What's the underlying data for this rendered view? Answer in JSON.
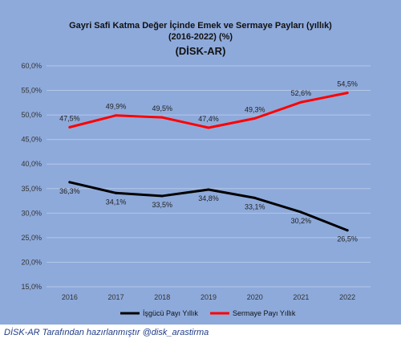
{
  "chart_data": {
    "type": "line",
    "title_line1": "Gayri Safi Katma Değer İçinde Emek ve Sermaye Payları (yıllık)",
    "title_line2": "(2016-2022) (%)",
    "title_line3": "(DİSK-AR)",
    "categories": [
      "2016",
      "2017",
      "2018",
      "2019",
      "2020",
      "2021",
      "2022"
    ],
    "ylim": [
      15,
      60
    ],
    "yticks": [
      15,
      20,
      25,
      30,
      35,
      40,
      45,
      50,
      55,
      60
    ],
    "ytick_labels": [
      "15,0%",
      "20,0%",
      "25,0%",
      "30,0%",
      "35,0%",
      "40,0%",
      "45,0%",
      "50,0%",
      "55,0%",
      "60,0%"
    ],
    "grid": true,
    "legend_position": "bottom",
    "series": [
      {
        "name": "İşgücü Payı Yıllık",
        "color": "#000000",
        "values": [
          36.3,
          34.1,
          33.5,
          34.8,
          33.1,
          30.2,
          26.5
        ],
        "labels": [
          "36,3%",
          "34,1%",
          "33,5%",
          "34,8%",
          "33,1%",
          "30,2%",
          "26,5%"
        ]
      },
      {
        "name": "Sermaye Payı Yıllık",
        "color": "#ff0000",
        "values": [
          47.5,
          49.9,
          49.5,
          47.4,
          49.3,
          52.6,
          54.5
        ],
        "labels": [
          "47,5%",
          "49,9%",
          "49,5%",
          "47,4%",
          "49,3%",
          "52,6%",
          "54,5%"
        ]
      }
    ]
  },
  "footer": "DİSK-AR Tarafından hazırlanmıştır @disk_arastirma",
  "colors": {
    "background": "#8eaadb",
    "grid": "#b4c6e7",
    "footer_text": "#1f3c88"
  }
}
